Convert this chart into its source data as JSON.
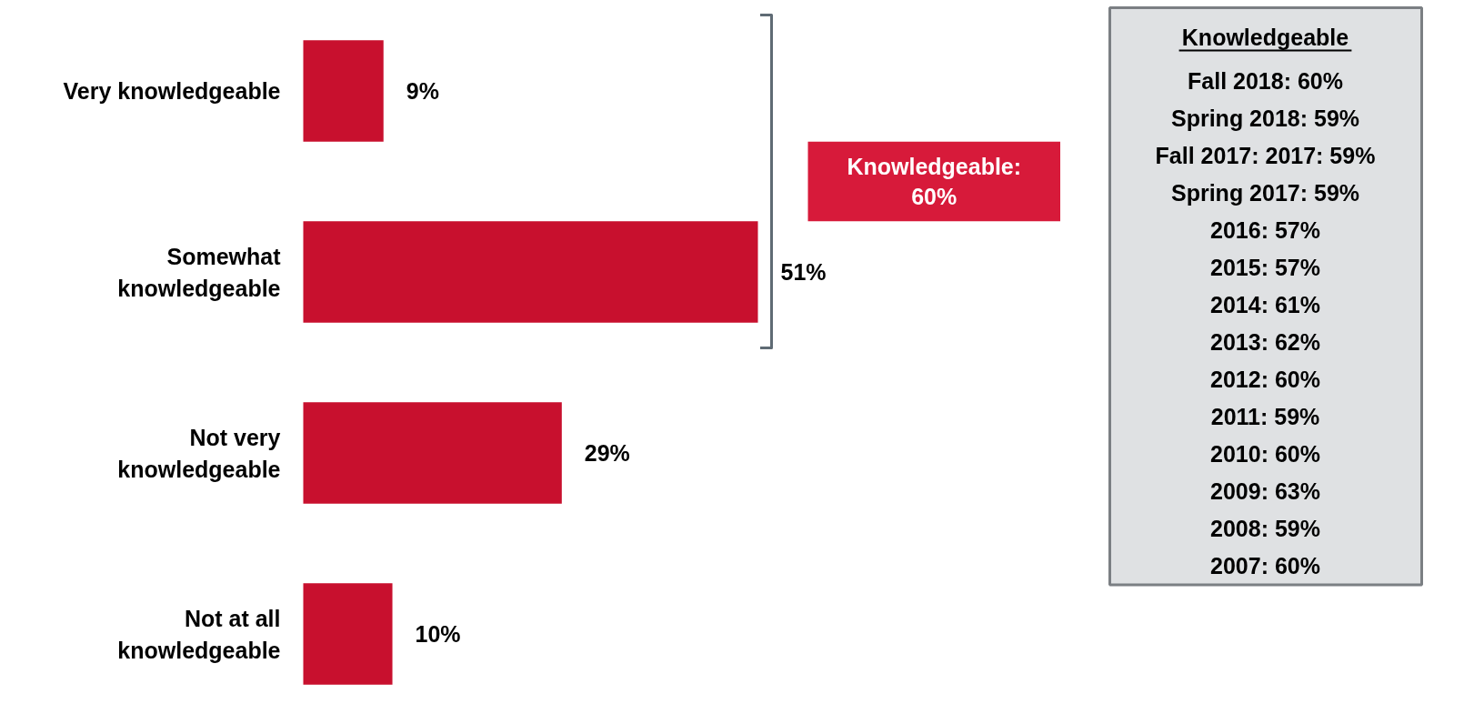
{
  "chart_data": [
    {
      "type": "bar",
      "orientation": "horizontal",
      "categories": [
        "Very knowledgeable",
        "Somewhat knowledgeable",
        "Not very knowledgeable",
        "Not at all knowledgeable"
      ],
      "values": [
        9,
        51,
        29,
        10
      ],
      "value_labels": [
        "9%",
        "51%",
        "29%",
        "10%"
      ],
      "color": "#c8102e",
      "grid": false,
      "annotations": [
        "Knowledgeable: 60%"
      ]
    },
    {
      "type": "other",
      "title": "Knowledgeable",
      "annotations": [
        "Fall 2018: 60%",
        "Spring 2018: 59%",
        "Fall 2017: 2017: 59%",
        "Spring 2017: 59%",
        "2016: 57%",
        "2015: 57%",
        "2014: 61%",
        "2013: 62%",
        "2012: 60%",
        "2011: 59%",
        "2010: 60%",
        "2009: 63%",
        "2008: 59%",
        "2007: 60%"
      ]
    }
  ]
}
